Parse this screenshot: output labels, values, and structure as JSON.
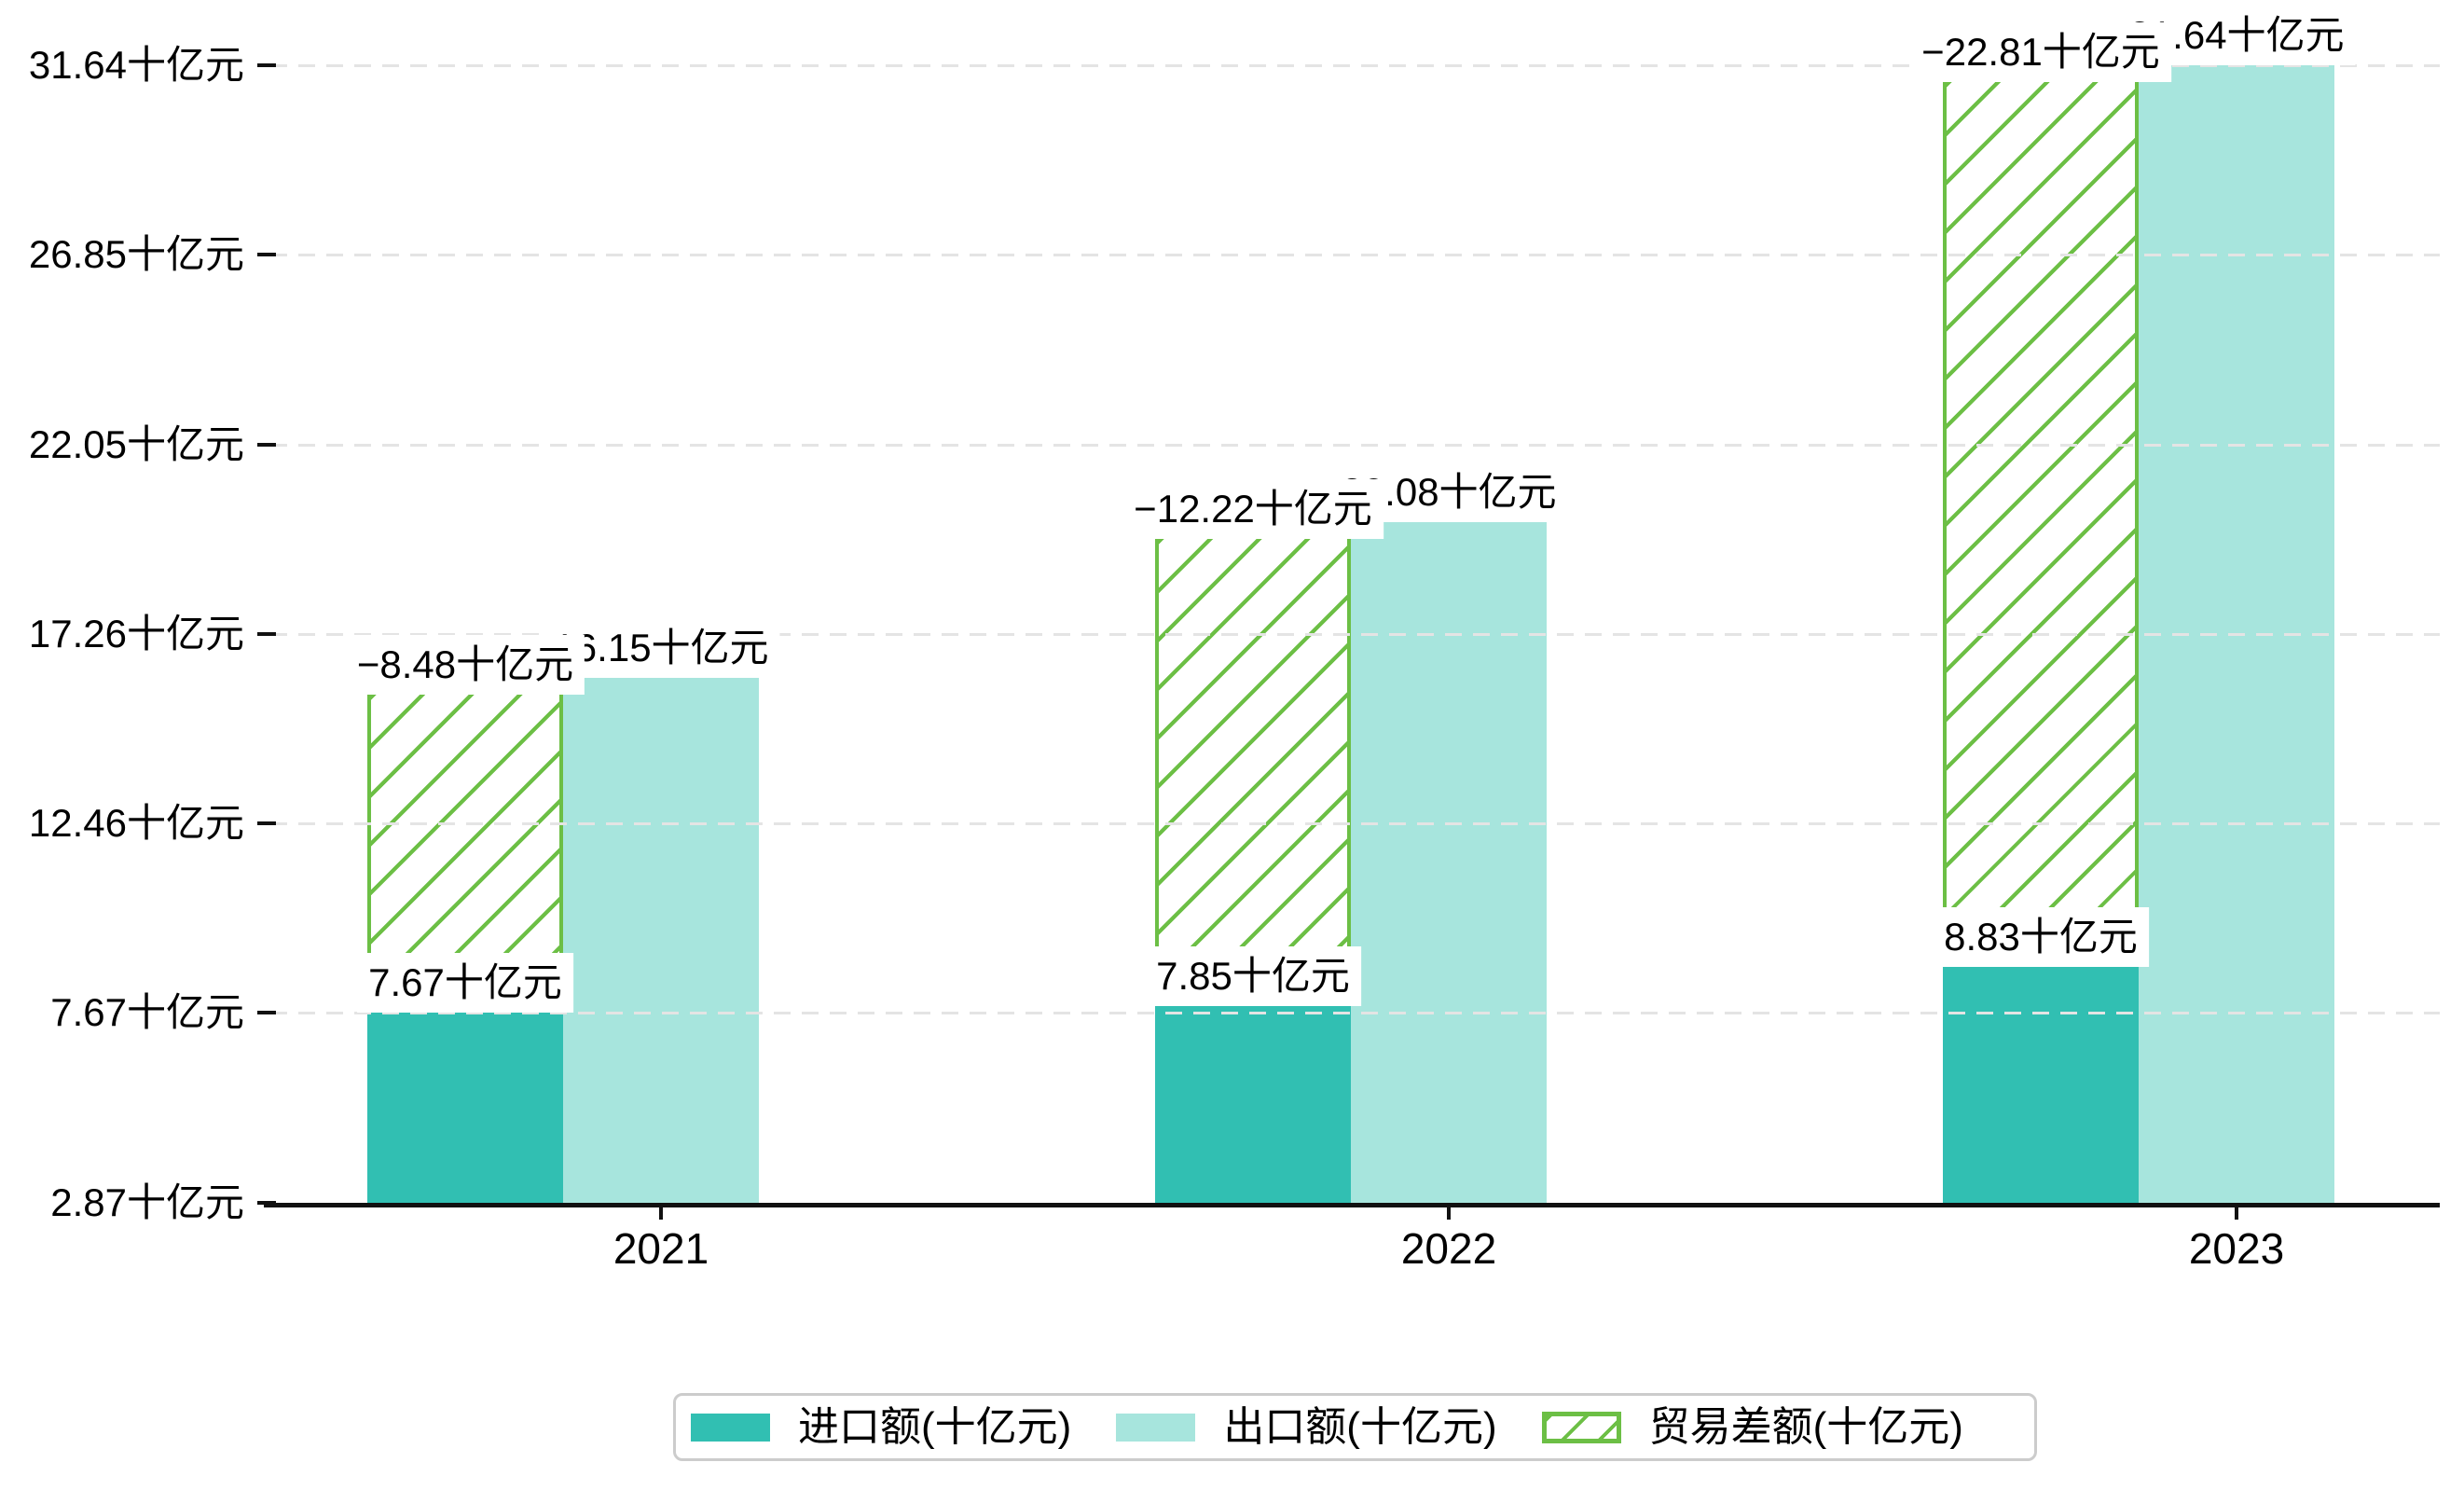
{
  "chart_data": {
    "type": "bar",
    "title": "",
    "categories": [
      "2021",
      "2022",
      "2023"
    ],
    "unit": "十亿元",
    "series": [
      {
        "name": "进口额(十亿元)",
        "role": "import",
        "values": [
          7.67,
          7.85,
          8.83
        ],
        "labels": [
          "7.67十亿元",
          "7.85十亿元",
          "8.83十亿元"
        ],
        "color": "#31bfb2"
      },
      {
        "name": "出口额(十亿元)",
        "role": "export",
        "values": [
          16.15,
          20.08,
          31.64
        ],
        "labels": [
          "16.15十亿元",
          "20.08十亿元",
          "31.64十亿元"
        ],
        "color": "#a7e5dd"
      },
      {
        "name": "贸易差额(十亿元)",
        "role": "trade-balance",
        "values": [
          -8.48,
          -12.22,
          -22.81
        ],
        "labels": [
          "−8.48十亿元",
          "−12.22十亿元",
          "−22.81十亿元"
        ],
        "color": "#6cbf45",
        "pattern": "diagonal-hatch"
      }
    ],
    "y_axis": {
      "min": 2.87,
      "max": 31.64,
      "tick_values": [
        2.87,
        7.67,
        12.46,
        17.26,
        22.05,
        26.85,
        31.64
      ],
      "tick_labels": [
        "2.87十亿元",
        "7.67十亿元",
        "12.46十亿元",
        "17.26十亿元",
        "22.05十亿元",
        "26.85十亿元",
        "31.64十亿元"
      ]
    },
    "x_axis": {
      "tick_labels": [
        "2021",
        "2022",
        "2023"
      ]
    },
    "grid": {
      "horizontal": true,
      "style": "dashed"
    },
    "legend_position": "bottom",
    "colors": {
      "import": "#31bfb2",
      "export": "#a7e5dd",
      "balance": "#6cbf45",
      "grid": "#e4e4e4",
      "axis": "#111111",
      "label_bg": "#ffffff",
      "legend_border": "#cccccc"
    }
  }
}
